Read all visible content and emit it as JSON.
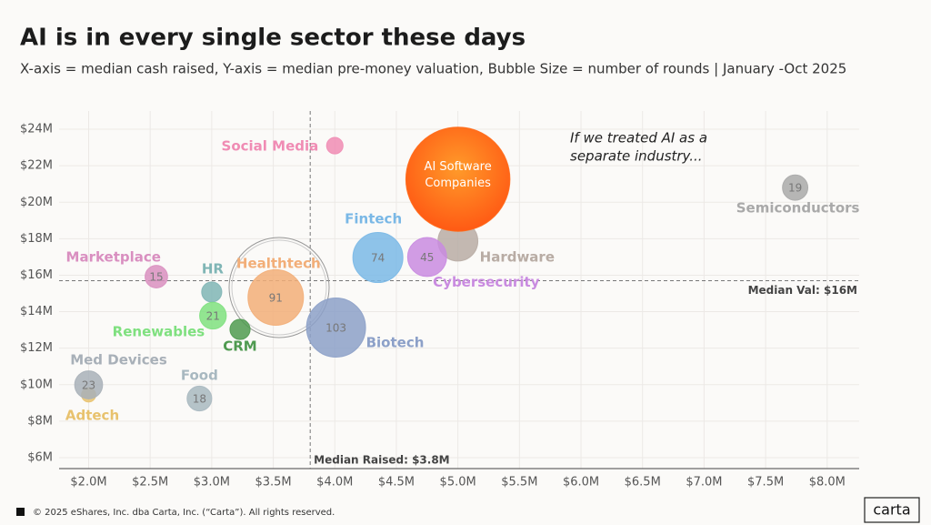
{
  "title": "AI is in every single sector these days",
  "subtitle": "X-axis = median cash raised, Y-axis = median pre-money valuation, Bubble Size = number of rounds | January -Oct 2025",
  "chart_data": {
    "type": "bubble",
    "xlim": [
      1.76,
      8.26
    ],
    "ylim": [
      5.4,
      25
    ],
    "xticks": [
      {
        "value": 2,
        "label": "$2.0M"
      },
      {
        "value": 2.5,
        "label": "$2.5M"
      },
      {
        "value": 3,
        "label": "$3.0M"
      },
      {
        "value": 3.5,
        "label": "$3.5M"
      },
      {
        "value": 4,
        "label": "$4.0M"
      },
      {
        "value": 4.5,
        "label": "$4.5M"
      },
      {
        "value": 5,
        "label": "$5.0M"
      },
      {
        "value": 5.5,
        "label": "$5.5M"
      },
      {
        "value": 6,
        "label": "$6.0M"
      },
      {
        "value": 6.5,
        "label": "$6.5M"
      },
      {
        "value": 7,
        "label": "$7.0M"
      },
      {
        "value": 7.5,
        "label": "$7.5M"
      },
      {
        "value": 8,
        "label": "$8.0M"
      }
    ],
    "yticks": [
      {
        "value": 6,
        "label": "$6M"
      },
      {
        "value": 8,
        "label": "$8M"
      },
      {
        "value": 10,
        "label": "$10M"
      },
      {
        "value": 12,
        "label": "$12M"
      },
      {
        "value": 14,
        "label": "$14M"
      },
      {
        "value": 16,
        "label": "$16M"
      },
      {
        "value": 18,
        "label": "$18M"
      },
      {
        "value": 20,
        "label": "$20M"
      },
      {
        "value": 22,
        "label": "$22M"
      },
      {
        "value": 24,
        "label": "$24M"
      }
    ],
    "grid": true,
    "median_x": {
      "value": 3.8,
      "label": "Median Raised: $3.8M"
    },
    "median_y": {
      "value": 15.7,
      "label": "Median Val: $16M"
    },
    "annotation": [
      "If we treated AI as a",
      "separate industry..."
    ],
    "series": [
      {
        "name": "Social Media",
        "color": "#f08cb4",
        "x": 4.0,
        "y": 23.1,
        "size": 8
      },
      {
        "name": "Hardware",
        "color": "#b8aca4",
        "x": 5.0,
        "y": 17.87,
        "size": 47
      },
      {
        "name": "Semiconductors",
        "color": "#a9a9a9",
        "x": 7.74,
        "y": 20.8,
        "size": 19
      },
      {
        "name": "Fintech",
        "color": "#7ab8e6",
        "x": 4.35,
        "y": 16.97,
        "size": 74
      },
      {
        "name": "Cybersecurity",
        "color": "#c98be0",
        "x": 4.75,
        "y": 17.0,
        "size": 45
      },
      {
        "name": "AI Software Companies",
        "color": "#ff6a1a",
        "x": 5.0,
        "y": 21.26,
        "size": 320
      },
      {
        "name": "Marketplace",
        "color": "#d98fc0",
        "x": 2.55,
        "y": 15.92,
        "size": 15
      },
      {
        "name": "HR",
        "color": "#7fb5b5",
        "x": 3.0,
        "y": 15.08,
        "size": 12
      },
      {
        "name": "Healthtech",
        "color": "#f2ae78",
        "x": 3.52,
        "y": 14.78,
        "size": 91
      },
      {
        "name": "Renewables",
        "color": "#7fe07f",
        "x": 3.01,
        "y": 13.78,
        "size": 21
      },
      {
        "name": "CRM",
        "color": "#4f9a50",
        "x": 3.23,
        "y": 13.03,
        "size": 12
      },
      {
        "name": "Biotech",
        "color": "#8ca0c8",
        "x": 4.01,
        "y": 13.13,
        "size": 103
      },
      {
        "name": "Adtech",
        "color": "#e8c26e",
        "x": 2.0,
        "y": 9.44,
        "size": 6
      },
      {
        "name": "Med Devices",
        "color": "#a8b0b8",
        "x": 2.0,
        "y": 9.99,
        "size": 23
      },
      {
        "name": "Food",
        "color": "#a8b8c0",
        "x": 2.9,
        "y": 9.24,
        "size": 18
      }
    ]
  },
  "footer": "© 2025 eShares, Inc. dba Carta, Inc. (“Carta”). All rights reserved.",
  "logo": "carta"
}
